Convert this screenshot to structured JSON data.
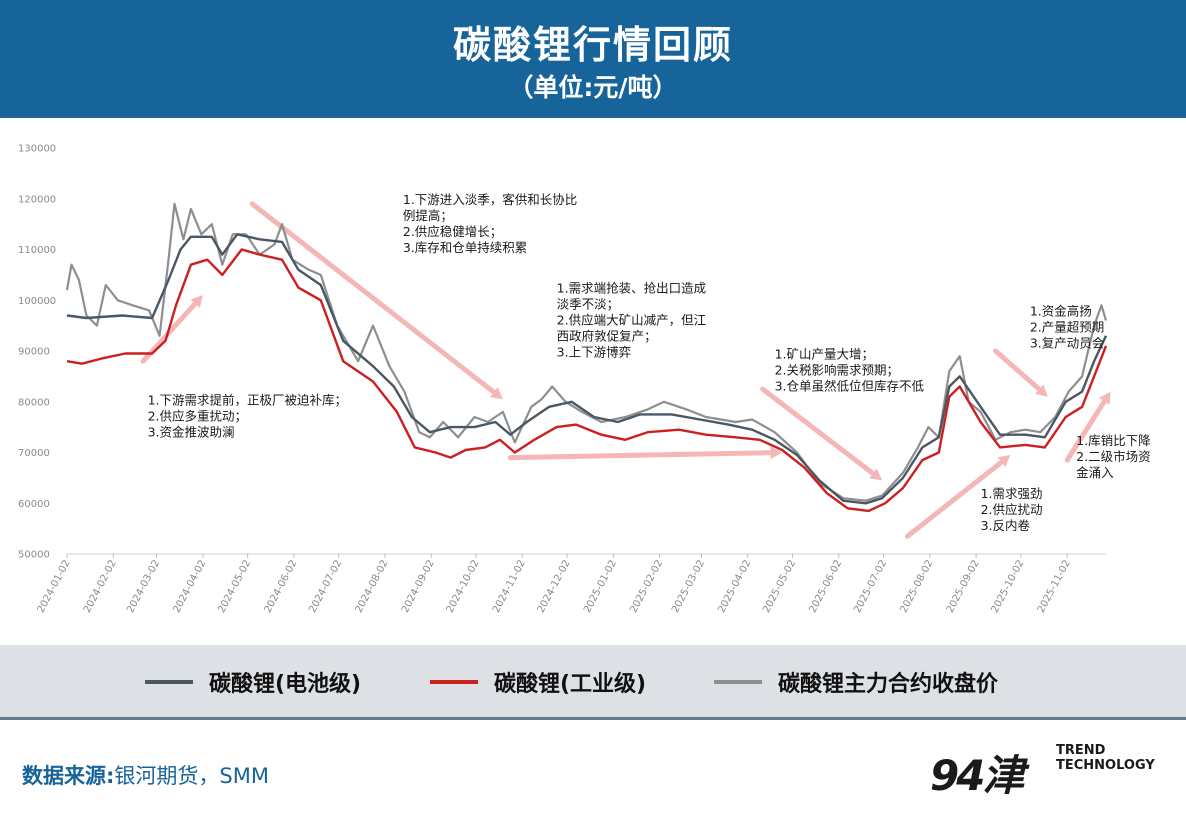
{
  "header": {
    "title": "碳酸锂行情回顾",
    "subtitle": "（单位:元/吨）"
  },
  "colors": {
    "header_bg": "#16649a",
    "battery": "#4a5866",
    "industrial": "#cc1f1f",
    "futures": "#8e8e8e",
    "arrow": "#f4b6b6"
  },
  "chart_data": {
    "type": "line",
    "ylim": [
      50000,
      130000
    ],
    "yticks": [
      50000,
      60000,
      70000,
      80000,
      90000,
      100000,
      110000,
      120000,
      130000
    ],
    "ytick_labels": [
      "50000",
      "60000",
      "70000",
      "80000",
      "90000",
      "100000",
      "110000",
      "120000",
      "130000"
    ],
    "xlim": [
      "2024-01-02",
      "2025-11-28"
    ],
    "xticks": [
      "2024-01-02",
      "2024-02-02",
      "2024-03-02",
      "2024-04-02",
      "2024-05-02",
      "2024-06-02",
      "2024-07-02",
      "2024-08-02",
      "2024-09-02",
      "2024-10-02",
      "2024-11-02",
      "2024-12-02",
      "2025-01-02",
      "2025-02-02",
      "2025-03-02",
      "2025-04-02",
      "2025-05-02",
      "2025-06-02",
      "2025-07-02",
      "2025-08-02",
      "2025-09-02",
      "2025-10-02",
      "2025-11-02"
    ],
    "series": [
      {
        "name": "碳酸锂(电池级)",
        "color": "#4a5866",
        "points": [
          [
            "2024-01-02",
            97000
          ],
          [
            "2024-01-15",
            96500
          ],
          [
            "2024-02-08",
            97000
          ],
          [
            "2024-02-28",
            96500
          ],
          [
            "2024-03-10",
            104000
          ],
          [
            "2024-03-18",
            110000
          ],
          [
            "2024-03-25",
            112500
          ],
          [
            "2024-04-08",
            112500
          ],
          [
            "2024-04-15",
            109000
          ],
          [
            "2024-04-25",
            113000
          ],
          [
            "2024-05-10",
            112000
          ],
          [
            "2024-05-25",
            111500
          ],
          [
            "2024-06-05",
            106000
          ],
          [
            "2024-06-20",
            103000
          ],
          [
            "2024-07-05",
            92000
          ],
          [
            "2024-07-25",
            87000
          ],
          [
            "2024-08-08",
            83000
          ],
          [
            "2024-08-20",
            77000
          ],
          [
            "2024-09-01",
            74000
          ],
          [
            "2024-09-15",
            75000
          ],
          [
            "2024-10-01",
            75000
          ],
          [
            "2024-10-15",
            76000
          ],
          [
            "2024-10-25",
            73500
          ],
          [
            "2024-11-05",
            76000
          ],
          [
            "2024-11-20",
            79000
          ],
          [
            "2024-12-05",
            80000
          ],
          [
            "2024-12-20",
            77000
          ],
          [
            "2025-01-05",
            76000
          ],
          [
            "2025-01-20",
            77500
          ],
          [
            "2025-02-10",
            77500
          ],
          [
            "2025-03-01",
            76500
          ],
          [
            "2025-03-20",
            75500
          ],
          [
            "2025-04-05",
            74500
          ],
          [
            "2025-04-20",
            72500
          ],
          [
            "2025-05-05",
            69500
          ],
          [
            "2025-05-20",
            64500
          ],
          [
            "2025-06-05",
            60500
          ],
          [
            "2025-06-20",
            60000
          ],
          [
            "2025-07-01",
            61000
          ],
          [
            "2025-07-15",
            65000
          ],
          [
            "2025-07-28",
            71000
          ],
          [
            "2025-08-08",
            73000
          ],
          [
            "2025-08-15",
            83000
          ],
          [
            "2025-08-22",
            85000
          ],
          [
            "2025-09-05",
            79000
          ],
          [
            "2025-09-18",
            73500
          ],
          [
            "2025-10-05",
            73500
          ],
          [
            "2025-10-18",
            73000
          ],
          [
            "2025-11-01",
            80000
          ],
          [
            "2025-11-12",
            82000
          ],
          [
            "2025-11-20",
            88000
          ],
          [
            "2025-11-28",
            93000
          ]
        ]
      },
      {
        "name": "碳酸锂(工业级)",
        "color": "#cc1f1f",
        "points": [
          [
            "2024-01-02",
            88000
          ],
          [
            "2024-01-12",
            87500
          ],
          [
            "2024-01-25",
            88500
          ],
          [
            "2024-02-10",
            89500
          ],
          [
            "2024-02-28",
            89500
          ],
          [
            "2024-03-08",
            92000
          ],
          [
            "2024-03-15",
            99000
          ],
          [
            "2024-03-25",
            107000
          ],
          [
            "2024-04-05",
            108000
          ],
          [
            "2024-04-15",
            105000
          ],
          [
            "2024-04-28",
            110000
          ],
          [
            "2024-05-10",
            109000
          ],
          [
            "2024-05-25",
            108000
          ],
          [
            "2024-06-05",
            102500
          ],
          [
            "2024-06-20",
            100000
          ],
          [
            "2024-07-05",
            88000
          ],
          [
            "2024-07-25",
            84000
          ],
          [
            "2024-08-10",
            78000
          ],
          [
            "2024-08-22",
            71000
          ],
          [
            "2024-09-05",
            70000
          ],
          [
            "2024-09-15",
            69000
          ],
          [
            "2024-09-25",
            70500
          ],
          [
            "2024-10-08",
            71000
          ],
          [
            "2024-10-18",
            72500
          ],
          [
            "2024-10-28",
            70000
          ],
          [
            "2024-11-10",
            72500
          ],
          [
            "2024-11-25",
            75000
          ],
          [
            "2024-12-08",
            75500
          ],
          [
            "2024-12-25",
            73500
          ],
          [
            "2025-01-10",
            72500
          ],
          [
            "2025-01-25",
            74000
          ],
          [
            "2025-02-15",
            74500
          ],
          [
            "2025-03-05",
            73500
          ],
          [
            "2025-03-25",
            73000
          ],
          [
            "2025-04-10",
            72500
          ],
          [
            "2025-04-25",
            70500
          ],
          [
            "2025-05-10",
            67000
          ],
          [
            "2025-05-25",
            62000
          ],
          [
            "2025-06-08",
            59000
          ],
          [
            "2025-06-22",
            58500
          ],
          [
            "2025-07-03",
            60000
          ],
          [
            "2025-07-15",
            63000
          ],
          [
            "2025-07-28",
            68500
          ],
          [
            "2025-08-08",
            70000
          ],
          [
            "2025-08-15",
            81000
          ],
          [
            "2025-08-22",
            83000
          ],
          [
            "2025-09-05",
            76000
          ],
          [
            "2025-09-18",
            71000
          ],
          [
            "2025-10-05",
            71500
          ],
          [
            "2025-10-18",
            71000
          ],
          [
            "2025-11-01",
            77000
          ],
          [
            "2025-11-12",
            79000
          ],
          [
            "2025-11-20",
            85000
          ],
          [
            "2025-11-28",
            91000
          ]
        ]
      },
      {
        "name": "碳酸锂主力合约收盘价",
        "color": "#8e8e8e",
        "points": [
          [
            "2024-01-02",
            102000
          ],
          [
            "2024-01-05",
            107000
          ],
          [
            "2024-01-10",
            104000
          ],
          [
            "2024-01-15",
            97000
          ],
          [
            "2024-01-22",
            95000
          ],
          [
            "2024-01-28",
            103000
          ],
          [
            "2024-02-05",
            100000
          ],
          [
            "2024-02-15",
            99000
          ],
          [
            "2024-02-26",
            98000
          ],
          [
            "2024-03-04",
            93000
          ],
          [
            "2024-03-10",
            108000
          ],
          [
            "2024-03-14",
            119000
          ],
          [
            "2024-03-20",
            112000
          ],
          [
            "2024-03-25",
            118000
          ],
          [
            "2024-04-01",
            113000
          ],
          [
            "2024-04-08",
            115000
          ],
          [
            "2024-04-15",
            107000
          ],
          [
            "2024-04-22",
            113000
          ],
          [
            "2024-05-01",
            113000
          ],
          [
            "2024-05-10",
            109000
          ],
          [
            "2024-05-20",
            111000
          ],
          [
            "2024-05-25",
            115000
          ],
          [
            "2024-06-01",
            108000
          ],
          [
            "2024-06-12",
            106000
          ],
          [
            "2024-06-20",
            105000
          ],
          [
            "2024-07-01",
            95000
          ],
          [
            "2024-07-15",
            88000
          ],
          [
            "2024-07-25",
            95000
          ],
          [
            "2024-08-05",
            87000
          ],
          [
            "2024-08-15",
            82000
          ],
          [
            "2024-08-25",
            74000
          ],
          [
            "2024-09-01",
            73000
          ],
          [
            "2024-09-10",
            76000
          ],
          [
            "2024-09-20",
            73000
          ],
          [
            "2024-10-01",
            77000
          ],
          [
            "2024-10-10",
            76000
          ],
          [
            "2024-10-20",
            78000
          ],
          [
            "2024-10-28",
            72000
          ],
          [
            "2024-11-08",
            79000
          ],
          [
            "2024-11-15",
            80500
          ],
          [
            "2024-11-22",
            83000
          ],
          [
            "2024-12-01",
            80000
          ],
          [
            "2024-12-12",
            78000
          ],
          [
            "2024-12-25",
            76000
          ],
          [
            "2025-01-10",
            77000
          ],
          [
            "2025-01-25",
            78500
          ],
          [
            "2025-02-05",
            80000
          ],
          [
            "2025-02-20",
            78500
          ],
          [
            "2025-03-05",
            77000
          ],
          [
            "2025-03-25",
            76000
          ],
          [
            "2025-04-05",
            76500
          ],
          [
            "2025-04-20",
            74000
          ],
          [
            "2025-05-05",
            70000
          ],
          [
            "2025-05-20",
            64000
          ],
          [
            "2025-06-05",
            61000
          ],
          [
            "2025-06-20",
            60500
          ],
          [
            "2025-07-01",
            61500
          ],
          [
            "2025-07-15",
            66000
          ],
          [
            "2025-07-25",
            71000
          ],
          [
            "2025-08-01",
            75000
          ],
          [
            "2025-08-08",
            73000
          ],
          [
            "2025-08-15",
            86000
          ],
          [
            "2025-08-22",
            89000
          ],
          [
            "2025-08-28",
            80000
          ],
          [
            "2025-09-05",
            78000
          ],
          [
            "2025-09-15",
            72500
          ],
          [
            "2025-09-25",
            74000
          ],
          [
            "2025-10-05",
            74500
          ],
          [
            "2025-10-15",
            74000
          ],
          [
            "2025-10-25",
            77000
          ],
          [
            "2025-11-03",
            82000
          ],
          [
            "2025-11-12",
            85000
          ],
          [
            "2025-11-20",
            95000
          ],
          [
            "2025-11-25",
            99000
          ],
          [
            "2025-11-28",
            96000
          ]
        ]
      }
    ],
    "arrows": [
      {
        "from": [
          "2024-02-22",
          88000
        ],
        "to": [
          "2024-04-02",
          101000
        ]
      },
      {
        "from": [
          "2024-05-05",
          119000
        ],
        "to": [
          "2024-10-20",
          80500
        ]
      },
      {
        "from": [
          "2024-10-25",
          69000
        ],
        "to": [
          "2025-04-25",
          70000
        ]
      },
      {
        "from": [
          "2025-04-12",
          82500
        ],
        "to": [
          "2025-07-01",
          64500
        ]
      },
      {
        "from": [
          "2025-07-18",
          53500
        ],
        "to": [
          "2025-09-25",
          69500
        ]
      },
      {
        "from": [
          "2025-09-15",
          90000
        ],
        "to": [
          "2025-10-20",
          81000
        ]
      },
      {
        "from": [
          "2025-11-02",
          68500
        ],
        "to": [
          "2025-12-01",
          82000
        ]
      }
    ],
    "annotations": [
      {
        "at": [
          "2024-02-25",
          79500
        ],
        "lines": [
          "1.下游需求提前，正极厂被迫补库；",
          "2.供应多重扰动；",
          "3.资金推波助澜"
        ]
      },
      {
        "at": [
          "2024-08-14",
          119000
        ],
        "lines": [
          "1.下游进入淡季，客供和长协比",
          "例提高；",
          "2.供应稳健增长；",
          "3.库存和仓单持续积累"
        ]
      },
      {
        "at": [
          "2024-11-25",
          101500
        ],
        "lines": [
          "1.需求端抢装、抢出口造成",
          "淡季不淡；",
          "2.供应端大矿山减产，但江",
          "西政府敦促复产；",
          "3.上下游博弈"
        ]
      },
      {
        "at": [
          "2025-04-20",
          88500
        ],
        "lines": [
          "1.矿山产量大增；",
          "2.关税影响需求预期；",
          "3.仓单虽然低位但库存不低"
        ]
      },
      {
        "at": [
          "2025-09-05",
          61000
        ],
        "lines": [
          "1.需求强劲",
          "2.供应扰动",
          "3.反内卷"
        ]
      },
      {
        "at": [
          "2025-10-08",
          97000
        ],
        "lines": [
          "1.资金高扬",
          "2.产量超预期",
          "3.复产动员会"
        ]
      },
      {
        "at": [
          "2025-11-08",
          71500
        ],
        "lines": [
          "1.库销比下降",
          "2.二级市场资",
          "金涌入"
        ]
      }
    ]
  },
  "legend": {
    "items": [
      "碳酸锂(电池级)",
      "碳酸锂(工业级)",
      "碳酸锂主力合约收盘价"
    ]
  },
  "footer": {
    "source_label": "数据来源:",
    "source_value": "银河期货，SMM",
    "logo_mark": "94津",
    "logo_line1": "TREND",
    "logo_line2": "TECHNOLOGY"
  }
}
